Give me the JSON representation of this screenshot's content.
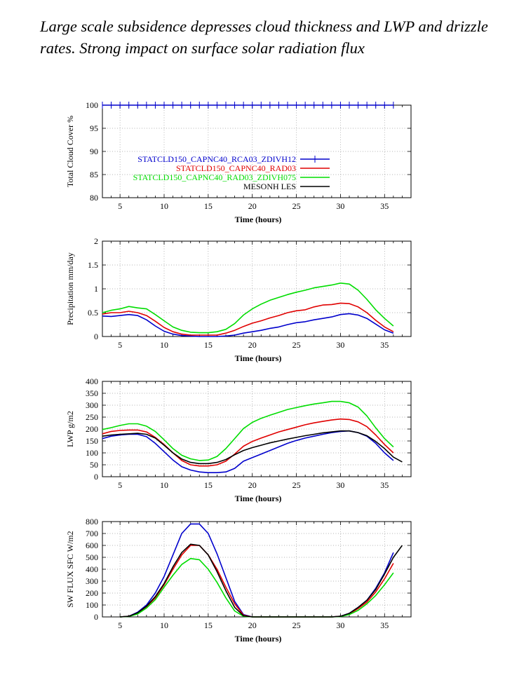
{
  "headline": "Large scale subsidence depresses cloud thickness and LWP and drizzle rates. Strong impact on surface solar radiation flux",
  "chart_data": [
    {
      "type": "line",
      "xlabel": "Time (hours)",
      "ylabel": "Total Cloud Cover %",
      "xlim": [
        3,
        38
      ],
      "ylim": [
        80,
        100
      ],
      "xticks": [
        5,
        10,
        15,
        20,
        25,
        30,
        35
      ],
      "yticks": [
        80,
        85,
        90,
        95,
        100
      ],
      "legend_position": "middle-right",
      "series": [
        {
          "name": "STATCLD150_CAPNC40_RCA03_ZDIVH12",
          "color": "#0000cc",
          "marker": "plus",
          "x": [
            3,
            4,
            5,
            6,
            7,
            8,
            9,
            10,
            11,
            12,
            13,
            14,
            15,
            16,
            17,
            18,
            19,
            20,
            21,
            22,
            23,
            24,
            25,
            26,
            27,
            28,
            29,
            30,
            31,
            32,
            33,
            34,
            35,
            36
          ],
          "y": [
            100,
            100,
            100,
            100,
            100,
            100,
            100,
            100,
            100,
            100,
            100,
            100,
            100,
            100,
            100,
            100,
            100,
            100,
            100,
            100,
            100,
            100,
            100,
            100,
            100,
            100,
            100,
            100,
            100,
            100,
            100,
            100,
            100,
            100
          ]
        },
        {
          "name": "STATCLD150_CAPNC40_RAD03",
          "color": "#e00000",
          "x": [],
          "y": []
        },
        {
          "name": "STATCLD150_CAPNC40_RAD03_ZDIVH075",
          "color": "#00dd00",
          "x": [],
          "y": []
        },
        {
          "name": "MESONH LES",
          "color": "#000000",
          "x": [],
          "y": []
        }
      ]
    },
    {
      "type": "line",
      "xlabel": "Time (hours)",
      "ylabel": "Precipitation mm/day",
      "xlim": [
        3,
        38
      ],
      "ylim": [
        0,
        2
      ],
      "xticks": [
        5,
        10,
        15,
        20,
        25,
        30,
        35
      ],
      "yticks": [
        0,
        0.5,
        1,
        1.5,
        2
      ],
      "series": [
        {
          "color": "#0000cc",
          "x": [
            3,
            4,
            5,
            6,
            7,
            8,
            9,
            10,
            11,
            12,
            13,
            14,
            15,
            16,
            17,
            18,
            19,
            20,
            21,
            22,
            23,
            24,
            25,
            26,
            27,
            28,
            29,
            30,
            31,
            32,
            33,
            34,
            35,
            36
          ],
          "y": [
            0.43,
            0.42,
            0.44,
            0.46,
            0.44,
            0.35,
            0.22,
            0.11,
            0.05,
            0.02,
            0.01,
            0.0,
            0.0,
            0.0,
            0.01,
            0.03,
            0.07,
            0.1,
            0.13,
            0.17,
            0.2,
            0.25,
            0.29,
            0.31,
            0.35,
            0.38,
            0.41,
            0.46,
            0.48,
            0.45,
            0.38,
            0.26,
            0.14,
            0.07
          ]
        },
        {
          "color": "#e00000",
          "x": [
            3,
            4,
            5,
            6,
            7,
            8,
            9,
            10,
            11,
            12,
            13,
            14,
            15,
            16,
            17,
            18,
            19,
            20,
            21,
            22,
            23,
            24,
            25,
            26,
            27,
            28,
            29,
            30,
            31,
            32,
            33,
            34,
            35,
            36
          ],
          "y": [
            0.47,
            0.5,
            0.5,
            0.53,
            0.5,
            0.44,
            0.32,
            0.19,
            0.1,
            0.05,
            0.03,
            0.03,
            0.03,
            0.03,
            0.07,
            0.13,
            0.21,
            0.28,
            0.33,
            0.39,
            0.44,
            0.5,
            0.54,
            0.56,
            0.62,
            0.66,
            0.67,
            0.7,
            0.69,
            0.62,
            0.5,
            0.34,
            0.2,
            0.1
          ]
        },
        {
          "color": "#00dd00",
          "x": [
            3,
            4,
            5,
            6,
            7,
            8,
            9,
            10,
            11,
            12,
            13,
            14,
            15,
            16,
            17,
            18,
            19,
            20,
            21,
            22,
            23,
            24,
            25,
            26,
            27,
            28,
            29,
            30,
            31,
            32,
            33,
            34,
            35,
            36
          ],
          "y": [
            0.5,
            0.55,
            0.58,
            0.63,
            0.6,
            0.58,
            0.46,
            0.33,
            0.2,
            0.13,
            0.09,
            0.08,
            0.08,
            0.1,
            0.15,
            0.27,
            0.45,
            0.58,
            0.68,
            0.76,
            0.82,
            0.88,
            0.93,
            0.97,
            1.02,
            1.05,
            1.08,
            1.12,
            1.1,
            0.97,
            0.78,
            0.56,
            0.38,
            0.22
          ]
        }
      ]
    },
    {
      "type": "line",
      "xlabel": "Time (hours)",
      "ylabel": "LWP g/m2",
      "xlim": [
        3,
        38
      ],
      "ylim": [
        0,
        400
      ],
      "xticks": [
        5,
        10,
        15,
        20,
        25,
        30,
        35
      ],
      "yticks": [
        0,
        50,
        100,
        150,
        200,
        250,
        300,
        350,
        400
      ],
      "series": [
        {
          "color": "#0000cc",
          "x": [
            3,
            4,
            5,
            6,
            7,
            8,
            9,
            10,
            11,
            12,
            13,
            14,
            15,
            16,
            17,
            18,
            19,
            20,
            21,
            22,
            23,
            24,
            25,
            26,
            27,
            28,
            29,
            30,
            31,
            32,
            33,
            34,
            35,
            36
          ],
          "y": [
            160,
            170,
            175,
            178,
            178,
            168,
            140,
            105,
            70,
            42,
            28,
            20,
            17,
            17,
            20,
            35,
            65,
            80,
            95,
            110,
            125,
            140,
            152,
            162,
            170,
            178,
            185,
            190,
            192,
            185,
            170,
            140,
            100,
            68
          ]
        },
        {
          "color": "#e00000",
          "x": [
            3,
            4,
            5,
            6,
            7,
            8,
            9,
            10,
            11,
            12,
            13,
            14,
            15,
            16,
            17,
            18,
            19,
            20,
            21,
            22,
            23,
            24,
            25,
            26,
            27,
            28,
            29,
            30,
            31,
            32,
            33,
            34,
            35,
            36
          ],
          "y": [
            180,
            190,
            194,
            196,
            196,
            188,
            165,
            135,
            100,
            68,
            50,
            45,
            45,
            50,
            65,
            95,
            128,
            148,
            162,
            175,
            188,
            198,
            208,
            218,
            226,
            232,
            238,
            242,
            240,
            230,
            210,
            175,
            135,
            100
          ]
        },
        {
          "color": "#00dd00",
          "x": [
            3,
            4,
            5,
            6,
            7,
            8,
            9,
            10,
            11,
            12,
            13,
            14,
            15,
            16,
            17,
            18,
            19,
            20,
            21,
            22,
            23,
            24,
            25,
            26,
            27,
            28,
            29,
            30,
            31,
            32,
            33,
            34,
            35,
            36
          ],
          "y": [
            198,
            206,
            215,
            222,
            222,
            212,
            190,
            155,
            118,
            90,
            75,
            68,
            70,
            85,
            118,
            160,
            202,
            228,
            245,
            258,
            270,
            282,
            290,
            298,
            305,
            310,
            316,
            316,
            310,
            292,
            255,
            205,
            160,
            125
          ]
        },
        {
          "color": "#000000",
          "x": [
            3,
            4,
            5,
            6,
            7,
            8,
            9,
            10,
            11,
            12,
            13,
            14,
            15,
            16,
            17,
            18,
            19,
            20,
            21,
            22,
            23,
            24,
            25,
            26,
            27,
            28,
            29,
            30,
            31,
            32,
            33,
            34,
            35,
            36,
            37
          ],
          "y": [
            170,
            175,
            178,
            180,
            182,
            178,
            162,
            132,
            100,
            74,
            60,
            55,
            55,
            60,
            72,
            92,
            110,
            122,
            132,
            142,
            150,
            158,
            165,
            172,
            178,
            184,
            188,
            192,
            192,
            185,
            172,
            148,
            118,
            82,
            62
          ]
        }
      ]
    },
    {
      "type": "line",
      "xlabel": "Time (hours)",
      "ylabel": "SW FLUX SFC W/m2",
      "xlim": [
        3,
        38
      ],
      "ylim": [
        0,
        800
      ],
      "xticks": [
        5,
        10,
        15,
        20,
        25,
        30,
        35
      ],
      "yticks": [
        0,
        100,
        200,
        300,
        400,
        500,
        600,
        700,
        800
      ],
      "series": [
        {
          "color": "#0000cc",
          "x": [
            5,
            6,
            7,
            8,
            9,
            10,
            11,
            12,
            13,
            14,
            15,
            16,
            17,
            18,
            19,
            20,
            21,
            22,
            23,
            24,
            25,
            26,
            27,
            28,
            29,
            30,
            31,
            32,
            33,
            34,
            35,
            36
          ],
          "y": [
            0,
            5,
            40,
            100,
            200,
            340,
            520,
            700,
            780,
            780,
            700,
            530,
            330,
            130,
            20,
            0,
            0,
            0,
            0,
            0,
            0,
            0,
            0,
            0,
            0,
            5,
            30,
            80,
            140,
            240,
            370,
            540
          ]
        },
        {
          "color": "#e00000",
          "x": [
            5,
            6,
            7,
            8,
            9,
            10,
            11,
            12,
            13,
            14,
            15,
            16,
            17,
            18,
            19,
            20,
            21,
            22,
            23,
            24,
            25,
            26,
            27,
            28,
            29,
            30,
            31,
            32,
            33,
            34,
            35,
            36
          ],
          "y": [
            0,
            5,
            30,
            85,
            160,
            270,
            400,
            520,
            600,
            600,
            520,
            400,
            250,
            110,
            15,
            0,
            0,
            0,
            0,
            0,
            0,
            0,
            0,
            0,
            0,
            5,
            25,
            70,
            125,
            210,
            320,
            450
          ]
        },
        {
          "color": "#00dd00",
          "x": [
            5,
            6,
            7,
            8,
            9,
            10,
            11,
            12,
            13,
            14,
            15,
            16,
            17,
            18,
            19,
            20,
            21,
            22,
            23,
            24,
            25,
            26,
            27,
            28,
            29,
            30,
            31,
            32,
            33,
            34,
            35,
            36
          ],
          "y": [
            0,
            4,
            25,
            75,
            145,
            250,
            350,
            440,
            490,
            480,
            400,
            290,
            160,
            50,
            5,
            0,
            0,
            0,
            0,
            0,
            0,
            0,
            0,
            0,
            0,
            3,
            20,
            55,
            110,
            180,
            270,
            370
          ]
        },
        {
          "color": "#000000",
          "x": [
            5,
            6,
            7,
            8,
            9,
            10,
            11,
            12,
            13,
            14,
            15,
            16,
            17,
            18,
            19,
            20,
            21,
            22,
            23,
            24,
            25,
            26,
            27,
            28,
            29,
            30,
            31,
            32,
            33,
            34,
            35,
            36,
            37
          ],
          "y": [
            0,
            5,
            35,
            90,
            170,
            280,
            420,
            540,
            610,
            600,
            520,
            380,
            220,
            80,
            10,
            0,
            0,
            0,
            0,
            0,
            0,
            0,
            0,
            0,
            0,
            5,
            30,
            80,
            140,
            230,
            360,
            500,
            600
          ]
        }
      ]
    }
  ]
}
